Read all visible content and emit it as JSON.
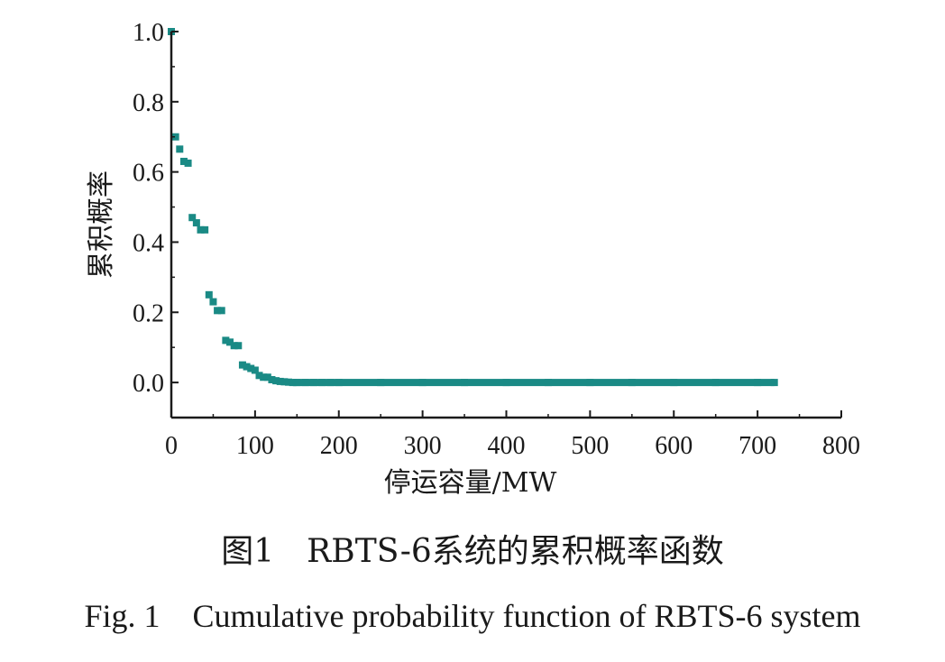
{
  "chart_data": {
    "type": "scatter",
    "xlabel": "停运容量/MW",
    "ylabel": "累积概率",
    "xlim": [
      0,
      800
    ],
    "ylim": [
      -0.1,
      1.0
    ],
    "x_ticks": [
      "0",
      "100",
      "200",
      "300",
      "400",
      "500",
      "600",
      "700",
      "800"
    ],
    "y_ticks": [
      "0.0",
      "0.2",
      "0.4",
      "0.6",
      "0.8",
      "1.0"
    ],
    "grid": false,
    "marker_color": "#1a8a85",
    "series": [
      {
        "x": [
          0,
          5,
          10,
          15,
          20,
          25,
          30,
          35,
          40,
          45,
          50,
          55,
          60,
          65,
          70,
          75,
          80,
          85,
          90,
          95,
          100,
          105,
          110,
          115,
          120,
          125,
          130,
          135,
          140,
          145,
          150,
          160,
          170,
          180,
          190,
          200,
          250,
          300,
          350,
          400,
          450,
          500,
          550,
          600,
          650,
          700,
          720
        ],
        "y": [
          1.0,
          0.7,
          0.665,
          0.63,
          0.625,
          0.47,
          0.455,
          0.435,
          0.435,
          0.25,
          0.23,
          0.205,
          0.205,
          0.12,
          0.115,
          0.105,
          0.105,
          0.05,
          0.045,
          0.04,
          0.035,
          0.02,
          0.015,
          0.015,
          0.008,
          0.005,
          0.003,
          0.002,
          0.001,
          0.0,
          0.0,
          0.0,
          0.0,
          0.0,
          0.0,
          0.0,
          0.0,
          0.0,
          0.0,
          0.0,
          0.0,
          0.0,
          0.0,
          0.0,
          0.0,
          0.0,
          0.0
        ]
      }
    ]
  },
  "captions": {
    "cn": "图1　RBTS-6系统的累积概率函数",
    "en": "Fig. 1　Cumulative probability function of RBTS-6 system"
  }
}
